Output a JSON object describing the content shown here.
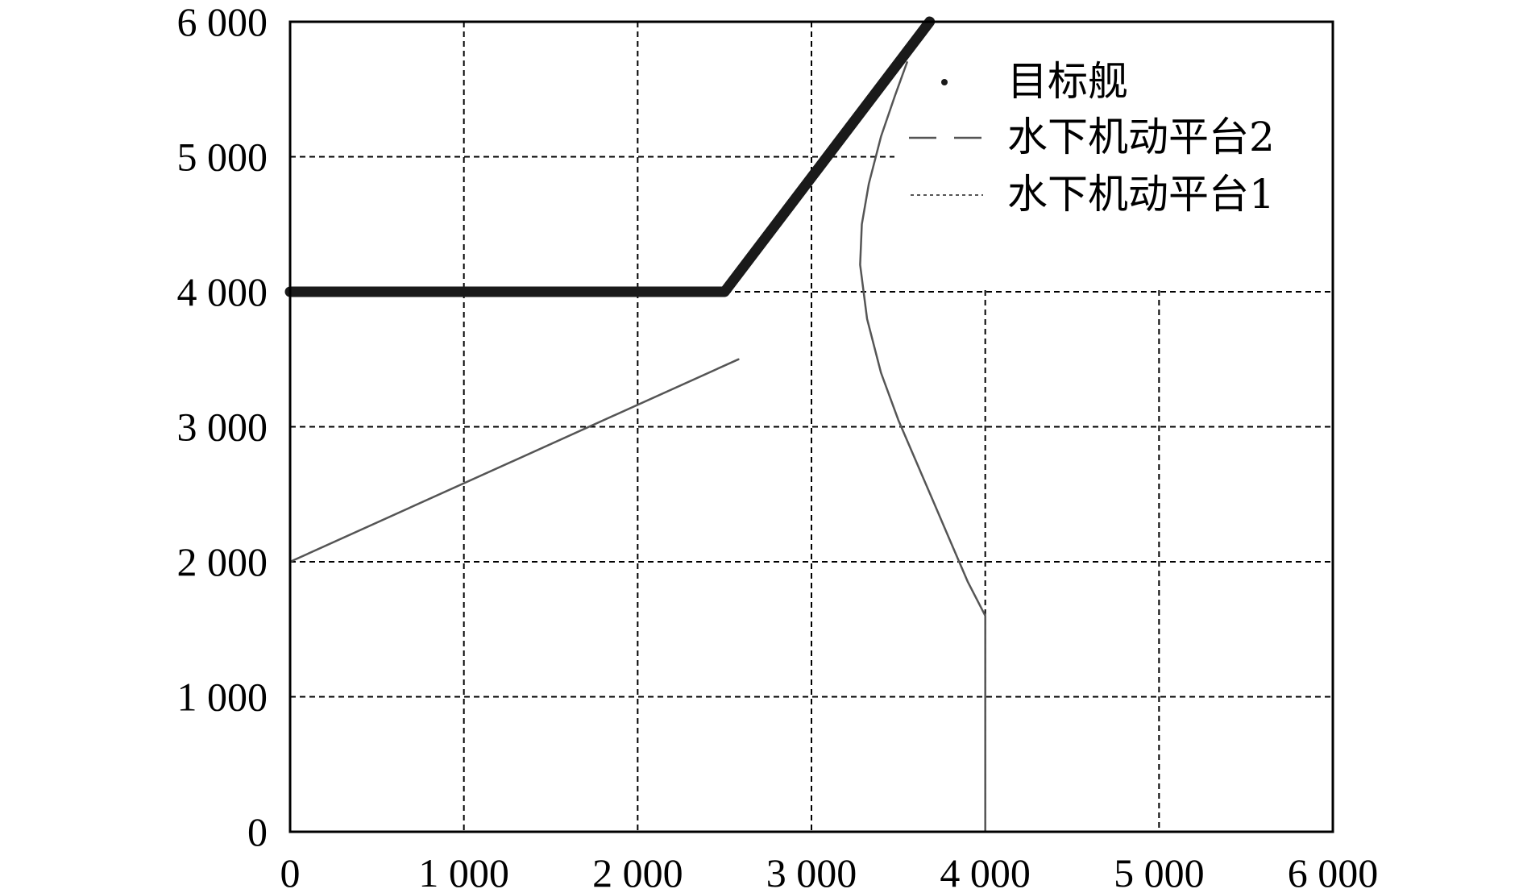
{
  "chart_data": {
    "type": "line",
    "title": "",
    "xlabel": "",
    "ylabel": "",
    "xlim": [
      0,
      6000
    ],
    "ylim": [
      0,
      6000
    ],
    "grid": true,
    "legend_position": "top-right",
    "x_ticks": [
      {
        "value": 0,
        "label": "0"
      },
      {
        "value": 1000,
        "label": "1 000"
      },
      {
        "value": 2000,
        "label": "2 000"
      },
      {
        "value": 3000,
        "label": "3 000"
      },
      {
        "value": 4000,
        "label": "4 000"
      },
      {
        "value": 5000,
        "label": "5 000"
      },
      {
        "value": 6000,
        "label": "6 000"
      }
    ],
    "y_ticks": [
      {
        "value": 0,
        "label": "0"
      },
      {
        "value": 1000,
        "label": "1 000"
      },
      {
        "value": 2000,
        "label": "2 000"
      },
      {
        "value": 3000,
        "label": "3 000"
      },
      {
        "value": 4000,
        "label": "4 000"
      },
      {
        "value": 5000,
        "label": "5 000"
      },
      {
        "value": 6000,
        "label": "6 000"
      }
    ],
    "series": [
      {
        "name": "目标舰",
        "style": "dotted-thick",
        "color": "#1a1a1a",
        "points": [
          [
            0,
            4000
          ],
          [
            2500,
            4000
          ],
          [
            3680,
            6000
          ]
        ]
      },
      {
        "name": "水下机动平台2",
        "style": "dashed",
        "color": "#555555",
        "points": [
          [
            4000,
            0
          ],
          [
            4000,
            1600
          ],
          [
            3900,
            1850
          ],
          [
            3800,
            2150
          ],
          [
            3700,
            2450
          ],
          [
            3600,
            2750
          ],
          [
            3500,
            3050
          ],
          [
            3400,
            3400
          ],
          [
            3320,
            3800
          ],
          [
            3280,
            4200
          ],
          [
            3290,
            4500
          ],
          [
            3330,
            4800
          ],
          [
            3400,
            5150
          ],
          [
            3480,
            5450
          ],
          [
            3550,
            5700
          ]
        ]
      },
      {
        "name": "水下机动平台1",
        "style": "dotted",
        "color": "#555555",
        "points": [
          [
            0,
            2000
          ],
          [
            2580,
            3500
          ]
        ]
      }
    ]
  }
}
